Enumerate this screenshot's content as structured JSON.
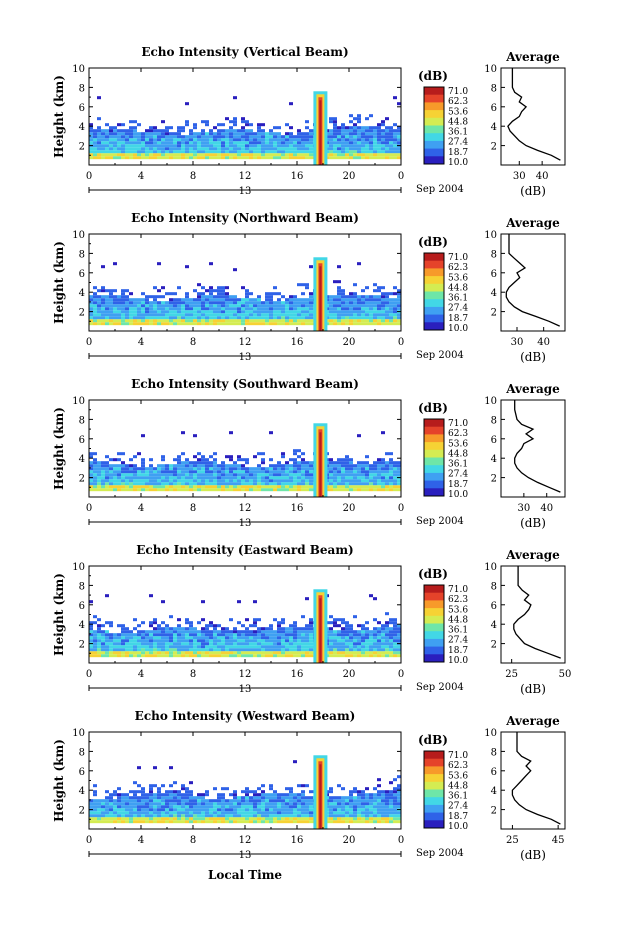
{
  "colorbar": {
    "unit": "(dB)",
    "ticks": [
      "71.0",
      "62.3",
      "53.6",
      "44.8",
      "36.1",
      "27.4",
      "18.7",
      "10.0"
    ],
    "colors": [
      "#2a1fbe",
      "#2f62e8",
      "#3fa0f2",
      "#42d7e6",
      "#6ee6a8",
      "#d4ec52",
      "#f6d234",
      "#f79a2a",
      "#e5432a",
      "#b71c1c"
    ]
  },
  "x_axis": {
    "ticks": [
      "0",
      "4",
      "8",
      "12",
      "16",
      "20",
      "0"
    ],
    "day_label": "13",
    "month_label": "Sep 2004",
    "title": "Local Time"
  },
  "y_axis": {
    "label": "Height (km)",
    "ticks": [
      "2",
      "4",
      "6",
      "8",
      "10"
    ]
  },
  "avg_axis": {
    "title": "Average",
    "xlabel": "(dB)"
  },
  "panels": [
    {
      "title": "Echo Intensity (Vertical Beam)",
      "avg_ticks": [
        "30",
        "40"
      ],
      "avg_xlim": [
        22,
        50
      ]
    },
    {
      "title": "Echo Intensity (Northward Beam)",
      "avg_ticks": [
        "30",
        "40"
      ],
      "avg_xlim": [
        24,
        48
      ]
    },
    {
      "title": "Echo Intensity (Southward Beam)",
      "avg_ticks": [
        "30",
        "40"
      ],
      "avg_xlim": [
        20,
        48
      ]
    },
    {
      "title": "Echo Intensity (Eastward Beam)",
      "avg_ticks": [
        "25",
        "50"
      ],
      "avg_xlim": [
        20,
        50
      ]
    },
    {
      "title": "Echo Intensity (Westward Beam)",
      "avg_ticks": [
        "25",
        "45"
      ],
      "avg_xlim": [
        20,
        48
      ]
    }
  ],
  "chart_data": {
    "type": "heatmap",
    "x_range_hours": [
      0,
      24
    ],
    "y_range_km": [
      0,
      10
    ],
    "value_range_db": [
      10.0,
      71.0
    ],
    "cloud_top_km": 4.5,
    "rain_spike_hour": 17.8,
    "rain_spike_top_km": 7.6,
    "profile_height_km": [
      0.5,
      1.0,
      1.5,
      2.0,
      2.5,
      3.0,
      3.5,
      4.0,
      4.5,
      5.0,
      5.5,
      6.0,
      6.5,
      7.0,
      7.5,
      8.0,
      9.0,
      10.0
    ],
    "average_profiles_db": [
      [
        48,
        44,
        38,
        33,
        30,
        28,
        26,
        25,
        27,
        30,
        31,
        33,
        30,
        31,
        28,
        27,
        27,
        27
      ],
      [
        46,
        42,
        37,
        32,
        29,
        27,
        26,
        26,
        27,
        29,
        31,
        30,
        33,
        31,
        29,
        27,
        27,
        27
      ],
      [
        46,
        41,
        36,
        32,
        29,
        27,
        26,
        26,
        27,
        29,
        30,
        34,
        31,
        34,
        29,
        27,
        26,
        26
      ],
      [
        48,
        42,
        36,
        31,
        29,
        27,
        26,
        26,
        28,
        31,
        33,
        34,
        31,
        33,
        30,
        28,
        28,
        28
      ],
      [
        46,
        42,
        36,
        31,
        28,
        26,
        25,
        25,
        27,
        29,
        31,
        33,
        31,
        33,
        29,
        27,
        27,
        27
      ]
    ]
  }
}
